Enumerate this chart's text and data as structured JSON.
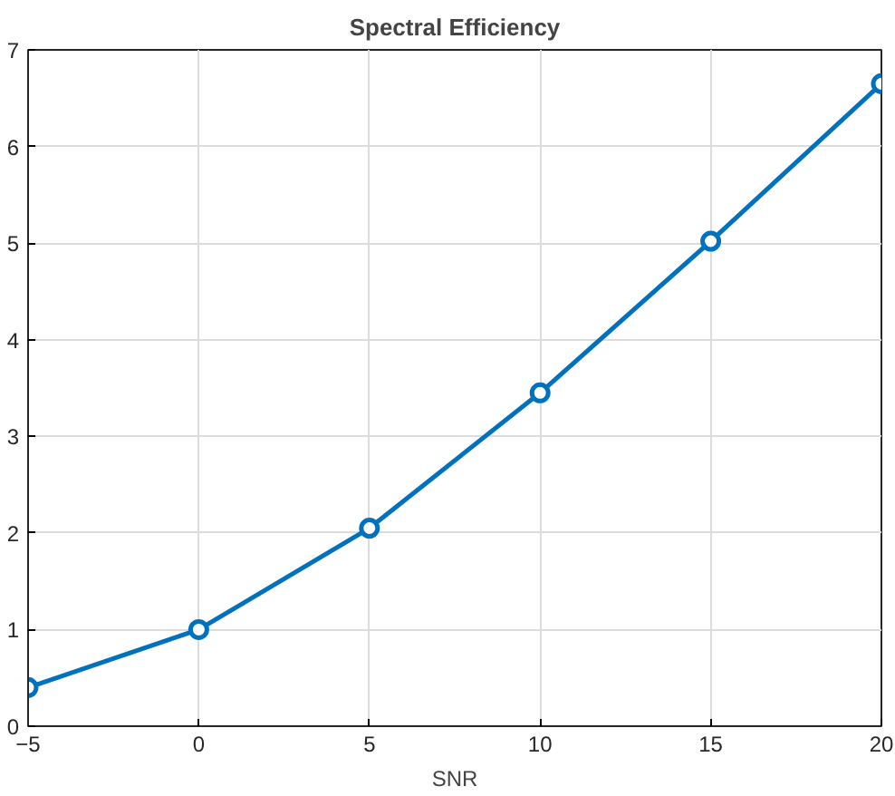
{
  "chart_data": {
    "type": "line",
    "title": "Spectral Efficiency",
    "xlabel": "SNR",
    "x": [
      -5,
      0,
      5,
      10,
      15,
      20
    ],
    "series": [
      {
        "color": "#0072bd",
        "values": [
          0.4,
          1.0,
          2.05,
          3.45,
          5.02,
          6.65
        ]
      }
    ],
    "xlim": [
      -5,
      20
    ],
    "xticks": [
      -5,
      0,
      5,
      10,
      15,
      20
    ],
    "ylim": [
      0,
      7
    ],
    "yticks": [
      0,
      1,
      2,
      3,
      4,
      5,
      6,
      7
    ],
    "grid": true,
    "marker": "circle",
    "line_style": "solid"
  }
}
